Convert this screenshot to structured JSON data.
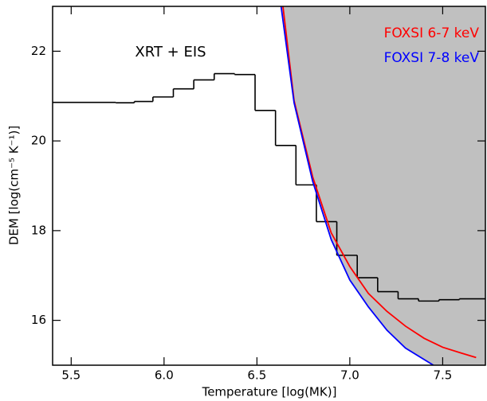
{
  "chart_data": {
    "type": "line",
    "x_label": "Temperature [log(MK)]",
    "y_label": "DEM [log(cm⁻⁵ K⁻¹)]",
    "xlim": [
      5.4,
      7.73
    ],
    "ylim": [
      15,
      23
    ],
    "xticks": [
      5.5,
      {
        "value": 6,
        "label": "6.0"
      },
      6.5,
      {
        "value": 7,
        "label": "7.0"
      },
      7.5
    ],
    "yticks": [
      16,
      18,
      20,
      22
    ],
    "legend": "upper right",
    "series": [
      {
        "name": "XRT + EIS",
        "color": "#000000",
        "bins": [
          5.4,
          5.74,
          5.84,
          5.94,
          6.05,
          6.16,
          6.27,
          6.38,
          6.49,
          6.6,
          6.71,
          6.82,
          6.93,
          7.04,
          7.15,
          7.26,
          7.37,
          7.48,
          7.59,
          7.73
        ],
        "values": [
          20.86,
          20.85,
          20.88,
          20.98,
          21.16,
          21.36,
          21.5,
          21.48,
          20.68,
          19.9,
          19.02,
          18.2,
          17.45,
          16.95,
          16.64,
          16.48,
          16.43,
          16.46,
          16.48
        ]
      },
      {
        "name": "FOXSI 6-7 keV",
        "color": "#ff0000",
        "x": [
          6.64,
          6.7,
          6.8,
          6.9,
          7.0,
          7.1,
          7.2,
          7.3,
          7.4,
          7.5,
          7.6,
          7.68
        ],
        "values": [
          23,
          20.9,
          19.2,
          17.95,
          17.2,
          16.6,
          16.2,
          15.87,
          15.6,
          15.4,
          15.27,
          15.17
        ]
      },
      {
        "name": "FOXSI 7-8 keV",
        "color": "#0000ff",
        "fill_above": "#c0c0c0",
        "x": [
          6.63,
          6.7,
          6.8,
          6.9,
          7.0,
          7.1,
          7.2,
          7.3,
          7.45
        ],
        "values": [
          23,
          20.85,
          19.1,
          17.8,
          16.9,
          16.3,
          15.78,
          15.38,
          15.0
        ]
      }
    ]
  }
}
